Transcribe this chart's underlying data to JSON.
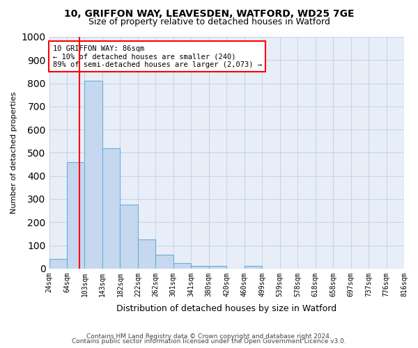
{
  "title1": "10, GRIFFON WAY, LEAVESDEN, WATFORD, WD25 7GE",
  "title2": "Size of property relative to detached houses in Watford",
  "xlabel": "Distribution of detached houses by size in Watford",
  "ylabel": "Number of detached properties",
  "footer1": "Contains HM Land Registry data © Crown copyright and database right 2024.",
  "footer2": "Contains public sector information licensed under the Open Government Licence v3.0.",
  "bin_labels": [
    "24sqm",
    "64sqm",
    "103sqm",
    "143sqm",
    "182sqm",
    "222sqm",
    "262sqm",
    "301sqm",
    "341sqm",
    "380sqm",
    "420sqm",
    "460sqm",
    "499sqm",
    "539sqm",
    "578sqm",
    "618sqm",
    "658sqm",
    "697sqm",
    "737sqm",
    "776sqm",
    "816sqm"
  ],
  "bar_values": [
    40,
    460,
    810,
    520,
    275,
    125,
    58,
    22,
    12,
    12,
    0,
    12,
    0,
    0,
    0,
    0,
    0,
    0,
    0,
    0
  ],
  "bar_color": "#c5d8f0",
  "bar_edge_color": "#6aaed6",
  "grid_color": "#c8d4e8",
  "background_color": "#e8eef8",
  "red_line_x": 1.22,
  "annotation_text": "10 GRIFFON WAY: 86sqm\n← 10% of detached houses are smaller (240)\n89% of semi-detached houses are larger (2,073) →",
  "annotation_box_color": "white",
  "annotation_border_color": "red",
  "ylim": [
    0,
    1000
  ],
  "yticks": [
    0,
    100,
    200,
    300,
    400,
    500,
    600,
    700,
    800,
    900,
    1000
  ]
}
